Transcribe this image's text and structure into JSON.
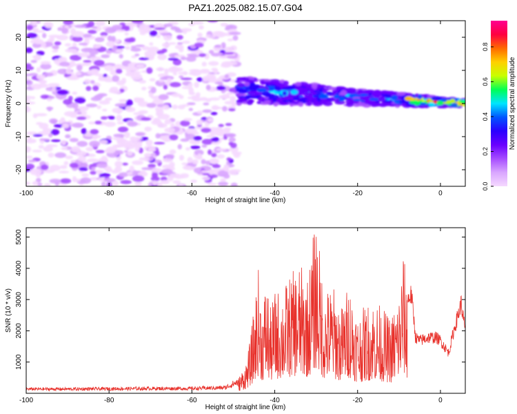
{
  "title": "PAZ1.2025.082.15.07.G04",
  "colors": {
    "snr_line": "#e8312b",
    "colormap": [
      "#f5d9ff",
      "#d9a6ff",
      "#a64dff",
      "#6a00ff",
      "#2a00ff",
      "#0055ff",
      "#00e5ff",
      "#00ff55",
      "#c8ff00",
      "#ffd000",
      "#ff6a00",
      "#ff0040",
      "#ff0090"
    ]
  },
  "chart_data": [
    {
      "type": "heatmap",
      "title": "",
      "xlabel": "Height of straight line (km)",
      "ylabel": "Frequency (Hz)",
      "xlim": [
        -100,
        6
      ],
      "ylim": [
        -25,
        25
      ],
      "x_ticks": [
        -100,
        -80,
        -60,
        -40,
        -20,
        0
      ],
      "y_ticks": [
        -20,
        -10,
        0,
        10,
        20
      ],
      "grid": false,
      "colorbar": {
        "label": "Normalized spectral amplitude",
        "range": [
          0.0,
          0.95
        ],
        "ticks": [
          0.0,
          0.2,
          0.4,
          0.6,
          0.8
        ],
        "placement": "right"
      },
      "features": {
        "noise_region_km": [
          -100,
          -49
        ],
        "signal_start_km": -49,
        "signal_center_hz_at_start": 4,
        "signal_center_hz_at_end": 0,
        "signal_halfwidth_hz_at_start": 4,
        "signal_halfwidth_hz_at_end": 1
      }
    },
    {
      "type": "line",
      "title": "",
      "xlabel": "Height of straight line (km)",
      "ylabel": "SNR (10 * v/v)",
      "xlim": [
        -100,
        6
      ],
      "ylim": [
        0,
        5300
      ],
      "x_ticks": [
        -100,
        -80,
        -60,
        -40,
        -20,
        0
      ],
      "y_ticks": [
        1000,
        2000,
        3000,
        4000,
        5000
      ],
      "grid": false,
      "series": [
        {
          "x": [
            -100,
            -90,
            -80,
            -70,
            -60,
            -52,
            -49,
            -47,
            -46,
            -45,
            -44,
            -43,
            -42,
            -41,
            -40,
            -38,
            -36,
            -34,
            -32,
            -30,
            -29,
            -28,
            -26,
            -24,
            -22,
            -20,
            -18,
            -16,
            -14,
            -12,
            -10,
            -9,
            -8,
            -7,
            -6,
            -5,
            -3,
            -1,
            0,
            2,
            3,
            4,
            5,
            6
          ],
          "values": [
            150,
            150,
            160,
            170,
            170,
            200,
            400,
            900,
            1500,
            2500,
            3700,
            2600,
            3400,
            2500,
            3000,
            3100,
            3500,
            3800,
            3400,
            5300,
            4000,
            3000,
            3200,
            2500,
            3300,
            2300,
            2600,
            2800,
            2500,
            2200,
            3000,
            4300,
            3000,
            3200,
            1800,
            1700,
            1800,
            1800,
            1700,
            1300,
            1900,
            2400,
            2900,
            2000
          ]
        }
      ]
    }
  ]
}
